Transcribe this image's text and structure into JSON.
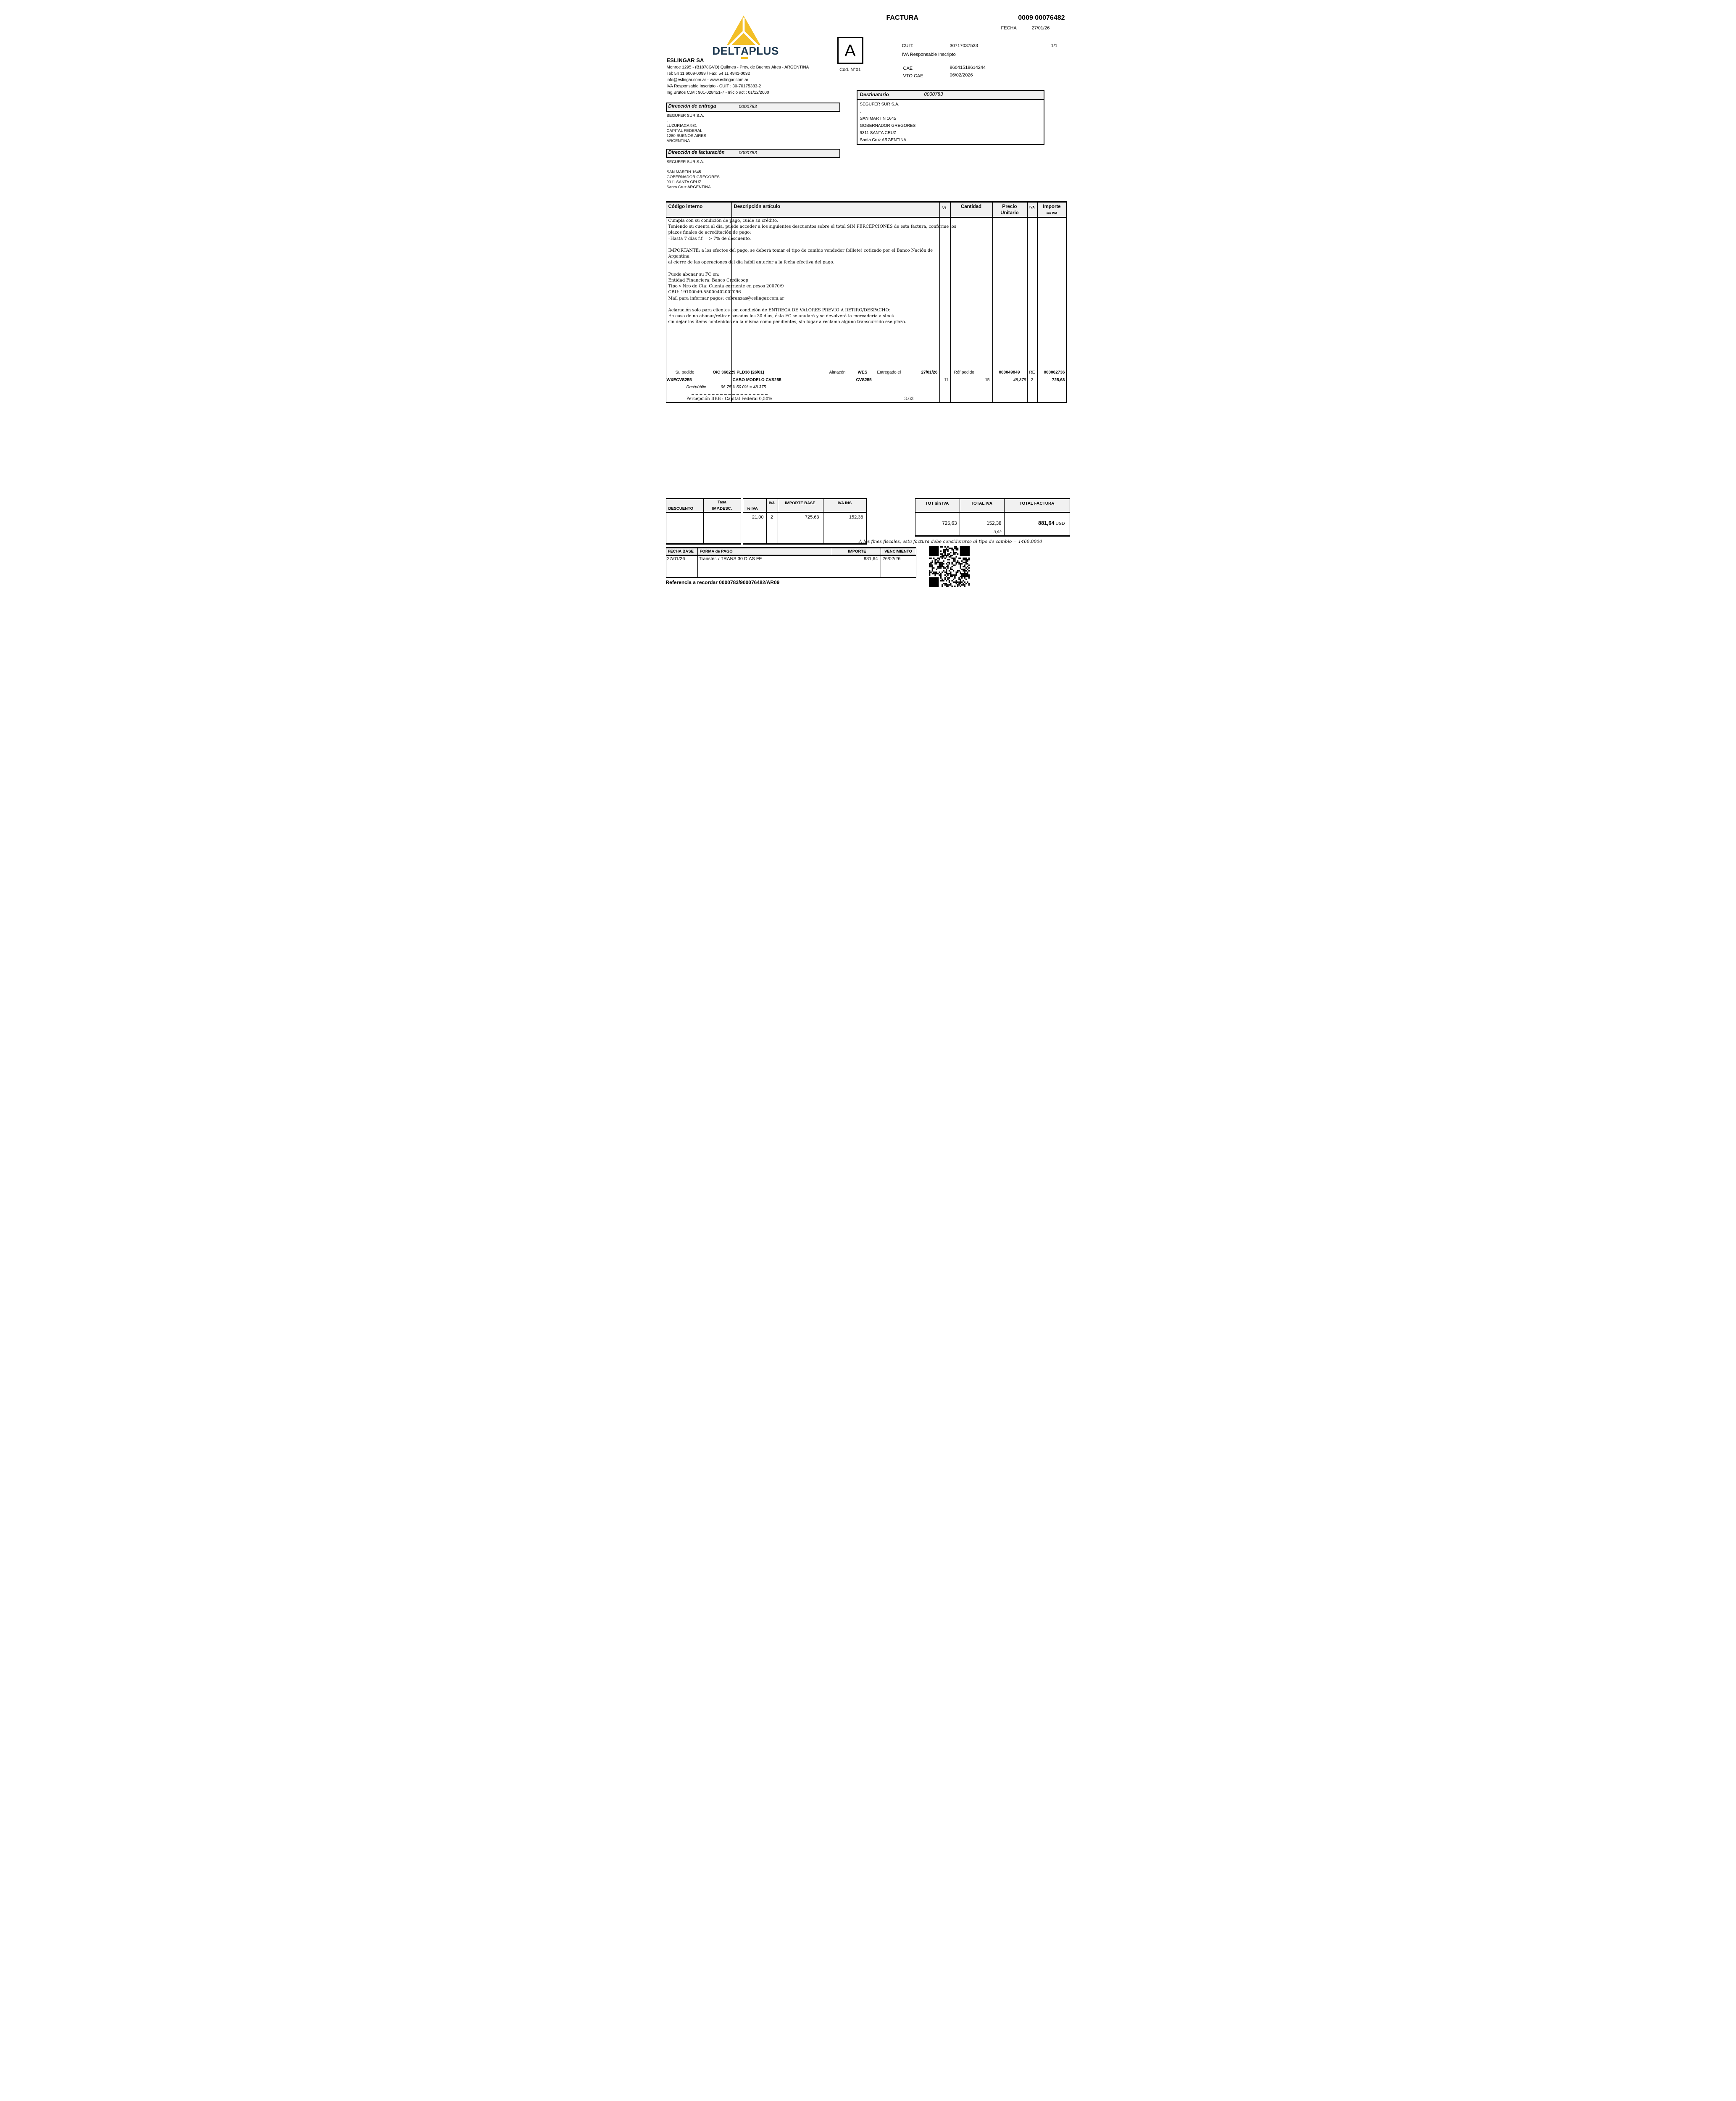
{
  "company": {
    "wordmark_left": "DELT",
    "wordmark_a": "A",
    "wordmark_right": "PLUS",
    "name": "ESLINGAR SA",
    "address_lines": [
      "Monroe 1295 - (B1878GVO) Quilmes - Prov. de  Buenos Aires - ARGENTINA",
      "Tel: 54 11 6009-0099 / Fax: 54 11 4941-0032",
      "info@eslingar.com.ar - www.eslingar.com.ar",
      "IVA Responsable Inscripto - CUIT : 30-70175383-2",
      "Ing.Brutos C.M : 901-028451-7 - Inicio act : 01/12/2000"
    ]
  },
  "invoice": {
    "doc_type": "FACTURA",
    "number": "0009 00076482",
    "fecha_label": "FECHA",
    "fecha": "27/01/26",
    "letter": "A",
    "cod_label": "Cod. N°01",
    "cuit_label": "CUIT:",
    "cuit": "30717037533",
    "page": "1/1",
    "iva_condition": "IVA Responsable Inscripto",
    "cae_label": "CAE",
    "cae": "86041518614244",
    "vto_cae_label": "VTO CAE",
    "vto_cae": "06/02/2026"
  },
  "destinatario": {
    "title": "Destinatario",
    "code": "0000783",
    "lines": [
      "SEGUFER SUR S.A.",
      ".",
      "SAN MARTIN 1645",
      "GOBERNADOR GREGORES",
      "9311 SANTA CRUZ",
      "Santa Cruz ARGENTINA"
    ]
  },
  "entrega": {
    "title": "Dirección de entrega",
    "code": "0000783",
    "lines": [
      "SEGUFER SUR S.A.",
      ".",
      "LUZURIAGA 981",
      "CAPITAL FEDERAL",
      "1280 BUENOS AIRES",
      "ARGENTINA"
    ]
  },
  "facturacion": {
    "title": "Dirección de facturación",
    "code": "0000783",
    "lines": [
      "SEGUFER SUR S.A.",
      ".",
      "SAN MARTIN 1645",
      "GOBERNADOR GREGORES",
      "9311 SANTA CRUZ",
      "Santa Cruz ARGENTINA"
    ]
  },
  "items": {
    "headers": {
      "codigo": "Código interno",
      "descripcion": "Descripción artículo",
      "vl": "VL",
      "cantidad": "Cantidad",
      "precio1": "Precio",
      "precio2": "Unitario",
      "iva": "IVA",
      "importe1": "Importe",
      "importe2": "sin IVA"
    },
    "message_lines": [
      "Cumpla con su condición de pago, cuide su crédito.",
      "Teniendo su cuenta al día, puede acceder a los siguientes descuentos sobre el total SIN PERCEPCIONES de esta factura, conforme los",
      "plazos finales de acreditación de pago:",
      "–Hasta  7 días f.f. =>  7% de descuento.",
      "",
      "IMPORTANTE: a los efectos del pago, se deberá tomar el tipo de cambio vendedor (billete) cotizado por el Banco Nación de",
      "Argentina",
      "al cierre de las operaciones del día hábil anterior a la fecha efectiva del pago.",
      "",
      "Puede abonar su FC en:",
      "Entidad Financiera: Banco Credicoop",
      "Tipo y Nro de Cta: Cuenta corriente en pesos 20070/9",
      "CBU: 19100049-55000402007096",
      "Mail para informar pagos: cobranzas@eslingar.com.ar",
      "",
      "Aclaración solo para clientes con condición de ENTREGA DE VALORES PREVIO A RETIRO/DESPACHO:",
      "En caso de no abonar/retirar pasados los 30 días, ésta FC se anulará y se devolverá la mercadería a stock",
      "sin dejar los ítems contenidos en la misma como pendientes, sin lugar a reclamo alguno transcurrido ese plazo."
    ],
    "order": {
      "su_pedido_label": "Su pedido",
      "su_pedido": "O/C 366229 PLD38 (26/01)",
      "almacen_label": "Almacén",
      "almacen": "WES",
      "entregado_label": "Entregado el",
      "entregado": "27/01/26",
      "ref_label": "Réf pedido",
      "ref": "000049849",
      "re": "RE",
      "re_num": "000062736"
    },
    "line": {
      "codigo": "WXECVS255",
      "descripcion": "CABO MODELO CVS255",
      "modelo": "CVS255",
      "vl": "11",
      "cantidad": "15",
      "precio": "48,375",
      "iva": "2",
      "importe": "725,63"
    },
    "descuento": {
      "label": "Des/públic",
      "formula": "96.75 X 50.0% = 48.375"
    },
    "percepcion": {
      "label": "Percepción IIBB : Capital Federal 0,50%",
      "value": "3.63"
    }
  },
  "summary": {
    "descuento_label": "DESCUENTO",
    "tasa_line1": "Tasa",
    "tasa_line2": "IMP.DESC.",
    "pct_iva_label": "% IVA",
    "iva_label": "IVA",
    "importe_base_label": "IMPORTE BASE",
    "iva_ins_label": "IVA INS",
    "pct_iva": "21,00",
    "iva_code": "2",
    "importe_base": "725,63",
    "iva_ins": "152,38",
    "tot_sin_iva_label": "TOT sin IVA",
    "total_iva_label": "TOTAL IVA",
    "total_factura_label": "TOTAL FACTURA",
    "tot_sin_iva": "725,63",
    "total_iva": "152,38",
    "percepcion": "3,63",
    "total_factura": "881,64",
    "currency": "USD",
    "fiscal_note": "A los fines fiscales, esta factura debe considerarse al tipo de cambio = 1460.0000"
  },
  "payment": {
    "fecha_base_label": "FECHA BASE",
    "forma_label": "FORMA de PAGO",
    "importe_label": "IMPORTE",
    "vencimiento_label": "VENCIMIENTO",
    "fecha_base": "27/01/26",
    "forma": "Transfer. / TRANS 30 DÍAS FF",
    "importe": "881,64",
    "vencimiento": "26/02/26"
  },
  "referencia": "Referencia a recordar 0000783/900076482/AR09",
  "colors": {
    "brand_yellow": "#F3BF26",
    "brand_navy": "#1d3850",
    "header_gray": "#f1f1f1"
  }
}
